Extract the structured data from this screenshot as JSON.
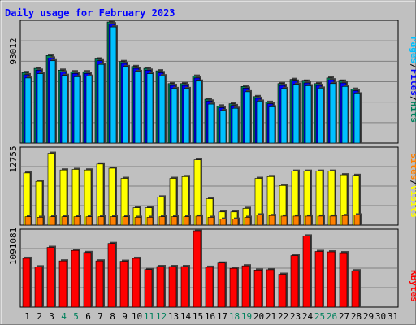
{
  "title": "Daily usage for February 2023",
  "colors": {
    "page_bg": "#C0C0C0",
    "title": "#0000FF",
    "hits": "#00805C",
    "files": "#0000FF",
    "pages": "#00C0FF",
    "visits": "#FFFF00",
    "sites": "#FF8000",
    "kbytes": "#FF0000",
    "separator": "#000000"
  },
  "right_labels": {
    "top": {
      "pages": "Pages",
      "files": "Files",
      "hits": "Hits",
      "sep": "/"
    },
    "middle": {
      "sites": "Sites",
      "visits": "Visits",
      "sep": "/"
    },
    "bottom": {
      "kbytes": "KBytes"
    }
  },
  "axis_max_labels": {
    "hits": "93012",
    "visits": "12755",
    "kbytes": "1091081"
  },
  "chart_data": {
    "type": "bar",
    "x": [
      1,
      2,
      3,
      4,
      5,
      6,
      7,
      8,
      9,
      10,
      11,
      12,
      13,
      14,
      15,
      16,
      17,
      18,
      19,
      20,
      21,
      22,
      23,
      24,
      25,
      26,
      27,
      28,
      29,
      30,
      31
    ],
    "weekend_days": [
      4,
      5,
      11,
      12,
      18,
      19,
      25,
      26
    ],
    "panels": [
      {
        "id": "hits-files-pages",
        "ymax": 93012,
        "series": [
          {
            "name": "Hits",
            "values": [
              54200,
              57400,
              67200,
              56000,
              54800,
              54800,
              64600,
              93012,
              62600,
              58800,
              57400,
              55500,
              45700,
              45700,
              51400,
              33700,
              28500,
              30200,
              43500,
              35700,
              31300,
              45700,
              48900,
              47600,
              45700,
              50000,
              47600,
              41400,
              null,
              null,
              null
            ]
          },
          {
            "name": "Files",
            "values": [
              52500,
              56000,
              65300,
              54600,
              53500,
              53500,
              63200,
              91600,
              61200,
              57400,
              56000,
              54100,
              44300,
              44300,
              50000,
              32300,
              27200,
              28800,
              42200,
              34400,
              30200,
              44300,
              47600,
              46200,
              44300,
              48600,
              46200,
              40300,
              null,
              null,
              null
            ]
          },
          {
            "name": "Pages",
            "values": [
              50000,
              53300,
              63200,
              52000,
              50900,
              51400,
              60400,
              89200,
              58800,
              55000,
              53300,
              51700,
              41900,
              41900,
              47600,
              29900,
              25000,
              26700,
              39400,
              32200,
              27800,
              41900,
              45200,
              44000,
              42200,
              45700,
              43500,
              37800,
              null,
              null,
              null
            ]
          }
        ]
      },
      {
        "id": "visits-sites",
        "ymax": 12755,
        "series": [
          {
            "name": "Visits",
            "values": [
              8700,
              7300,
              12000,
              9200,
              9300,
              9200,
              10200,
              9500,
              7800,
              2900,
              2900,
              4700,
              7800,
              8100,
              10900,
              4400,
              2200,
              2200,
              2800,
              7800,
              8100,
              6600,
              9000,
              9000,
              9000,
              9000,
              8400,
              8300,
              null,
              null,
              null
            ]
          },
          {
            "name": "Sites",
            "values": [
              1400,
              1300,
              1400,
              1400,
              1400,
              1400,
              1400,
              1400,
              1400,
              1300,
              1300,
              1400,
              1400,
              1400,
              1500,
              1300,
              1000,
              1000,
              1300,
              1700,
              1600,
              1500,
              1500,
              1500,
              1500,
              1500,
              1600,
              1700,
              null,
              null,
              null
            ]
          }
        ]
      },
      {
        "id": "kbytes",
        "ymax": 1091081,
        "series": [
          {
            "name": "KBytes",
            "values": [
              697000,
              576000,
              853000,
              660000,
              810000,
              780000,
              660000,
              909000,
              655000,
              697000,
              538000,
              580000,
              580000,
              580000,
              1091081,
              570000,
              630000,
              555000,
              590000,
              530000,
              535000,
              470000,
              736000,
              1017000,
              795000,
              789000,
              777000,
              520000,
              null,
              null,
              null
            ]
          }
        ]
      }
    ]
  }
}
